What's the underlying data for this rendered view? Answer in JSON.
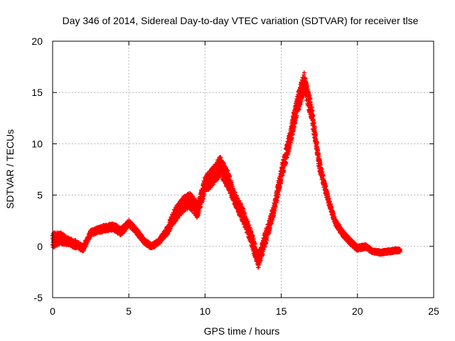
{
  "chart_data": {
    "type": "scatter",
    "title": "Day 346 of 2014, Sidereal Day-to-day VTEC variation (SDTVAR) for receiver tlse",
    "xlabel": "GPS time / hours",
    "ylabel": "SDTVAR / TECUs",
    "xlim": [
      0,
      25
    ],
    "ylim": [
      -5,
      20
    ],
    "xticks": [
      0,
      5,
      10,
      15,
      20,
      25
    ],
    "yticks": [
      -5,
      0,
      5,
      10,
      15,
      20
    ],
    "xtick_labels": [
      "0",
      "5",
      "10",
      "15",
      "20",
      "25"
    ],
    "ytick_labels": [
      "-5",
      "0",
      "5",
      "10",
      "15",
      "20"
    ],
    "grid": true,
    "marker": "+",
    "color": "#ff0000",
    "series": [
      {
        "name": "SDTVAR",
        "x": [
          0.0,
          0.5,
          1.0,
          1.5,
          2.0,
          2.5,
          3.0,
          3.5,
          4.0,
          4.5,
          5.0,
          5.5,
          6.0,
          6.5,
          7.0,
          7.5,
          8.0,
          8.5,
          9.0,
          9.5,
          10.0,
          10.5,
          11.0,
          11.5,
          12.0,
          12.5,
          13.0,
          13.5,
          14.0,
          14.5,
          15.0,
          15.5,
          16.0,
          16.5,
          17.0,
          17.5,
          18.0,
          18.5,
          19.0,
          19.5,
          20.0,
          20.5,
          21.0,
          21.5,
          22.0,
          22.5,
          22.8
        ],
        "y": [
          0.6,
          0.8,
          0.5,
          0.2,
          -0.2,
          1.3,
          1.6,
          1.8,
          1.9,
          1.4,
          2.3,
          1.5,
          0.5,
          0.0,
          0.5,
          1.5,
          3.0,
          4.0,
          4.5,
          3.5,
          6.0,
          6.8,
          7.8,
          6.5,
          4.5,
          3.0,
          1.0,
          -1.5,
          1.0,
          3.5,
          7.0,
          10.0,
          13.5,
          16.0,
          13.0,
          8.0,
          5.0,
          2.5,
          1.3,
          0.5,
          -0.2,
          0.0,
          -0.5,
          -0.6,
          -0.5,
          -0.4,
          -0.4
        ],
        "spread": [
          1.5,
          1.2,
          0.8,
          0.8,
          0.6,
          0.6,
          0.6,
          0.7,
          0.7,
          0.8,
          0.6,
          0.6,
          0.5,
          0.5,
          0.5,
          0.8,
          1.4,
          1.5,
          1.6,
          1.6,
          1.6,
          1.8,
          2.0,
          1.8,
          1.4,
          1.4,
          1.4,
          1.3,
          1.4,
          1.2,
          1.4,
          1.6,
          2.0,
          2.0,
          1.6,
          1.2,
          0.8,
          0.6,
          0.6,
          0.6,
          0.5,
          0.5,
          0.4,
          0.4,
          0.4,
          0.4,
          0.3
        ]
      }
    ]
  }
}
